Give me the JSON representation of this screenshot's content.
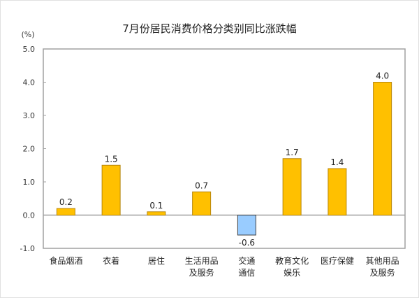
{
  "chart_data": {
    "type": "bar",
    "title": "7月份居民消费价格分类别同比涨跌幅",
    "ylabel": "(%)",
    "xlabel": "",
    "ylim": [
      -1.0,
      5.0
    ],
    "yticks": [
      "5.0",
      "4.0",
      "3.0",
      "2.0",
      "1.0",
      "0.0",
      "-1.0"
    ],
    "ytick_values": [
      5,
      4,
      3,
      2,
      1,
      0,
      -1
    ],
    "categories": [
      [
        "食品烟酒"
      ],
      [
        "衣着"
      ],
      [
        "居住"
      ],
      [
        "生活用品",
        "及服务"
      ],
      [
        "交通",
        "通信"
      ],
      [
        "教育文化",
        "娱乐"
      ],
      [
        "医疗保健"
      ],
      [
        "其他用品",
        "及服务"
      ]
    ],
    "values": [
      0.2,
      1.5,
      0.1,
      0.7,
      -0.6,
      1.7,
      1.4,
      4.0
    ],
    "data_labels": [
      "0.2",
      "1.5",
      "0.1",
      "0.7",
      "-0.6",
      "1.7",
      "1.4",
      "4.0"
    ],
    "grid": false,
    "colors": {
      "positive": "#FFC000",
      "positive_edge": "#B8860B",
      "negative": "#99CCFF",
      "negative_edge": "#404040",
      "axis": "#A0A0A0"
    }
  }
}
